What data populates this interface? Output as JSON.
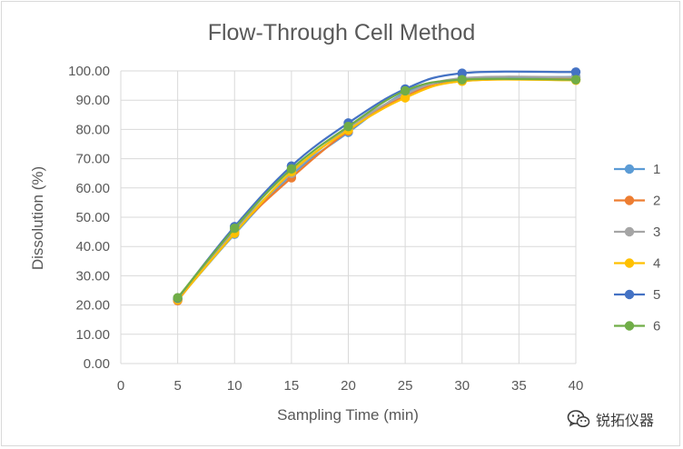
{
  "chart_data": {
    "type": "line",
    "title": "Flow-Through Cell Method",
    "xlabel": "Sampling Time (min)",
    "ylabel": "Dissolution (%)",
    "xlim": [
      0,
      40
    ],
    "ylim": [
      0,
      100
    ],
    "x_ticks": [
      "0",
      "5",
      "10",
      "15",
      "20",
      "25",
      "30",
      "35",
      "40"
    ],
    "y_ticks": [
      "0.00",
      "10.00",
      "20.00",
      "30.00",
      "40.00",
      "50.00",
      "60.00",
      "70.00",
      "80.00",
      "90.00",
      "100.00"
    ],
    "grid": true,
    "legend_position": "right",
    "x": [
      5,
      10,
      15,
      20,
      25,
      30,
      40
    ],
    "series": [
      {
        "name": "1",
        "color": "#5b9bd5",
        "values": [
          21.8,
          44.2,
          64.5,
          79.0,
          92.5,
          97.0,
          98.0
        ]
      },
      {
        "name": "2",
        "color": "#ed7d31",
        "values": [
          21.5,
          45.0,
          63.5,
          79.5,
          91.5,
          96.5,
          97.2
        ]
      },
      {
        "name": "3",
        "color": "#a5a5a5",
        "values": [
          22.0,
          45.5,
          65.0,
          80.5,
          92.0,
          97.5,
          97.8
        ]
      },
      {
        "name": "4",
        "color": "#ffc000",
        "values": [
          21.8,
          44.5,
          65.5,
          79.8,
          90.8,
          96.5,
          96.8
        ]
      },
      {
        "name": "5",
        "color": "#4472c4",
        "values": [
          22.3,
          46.8,
          67.5,
          82.2,
          93.8,
          99.2,
          99.6
        ]
      },
      {
        "name": "6",
        "color": "#70ad47",
        "values": [
          22.5,
          46.2,
          66.5,
          81.0,
          93.2,
          97.0,
          97.0
        ]
      }
    ]
  },
  "watermark": {
    "text": "锐拓仪器",
    "icon": "wechat-icon"
  }
}
